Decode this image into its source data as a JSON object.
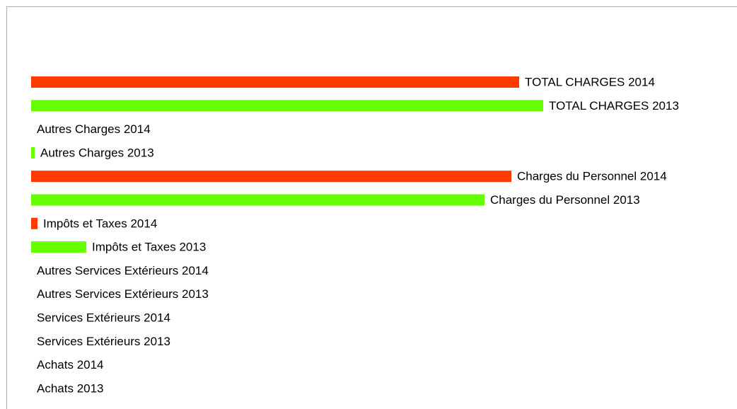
{
  "chart_data": {
    "type": "bar",
    "orientation": "horizontal",
    "categories": [
      "TOTAL CHARGES 2014",
      "TOTAL CHARGES 2013",
      "Autres Charges 2014",
      "Autres Charges 2013",
      "Charges du Personnel 2014",
      "Charges du Personnel 2013",
      "Impôts et Taxes 2014",
      "Impôts et Taxes 2013",
      "Autres Services Extérieurs 2014",
      "Autres Services Extérieurs 2013",
      "Services Extérieurs 2014",
      "Services Extérieurs 2013",
      "Achats 2014",
      "Achats 2013"
    ],
    "values": [
      690,
      724,
      0,
      5,
      679,
      641,
      9,
      78,
      0,
      0,
      0,
      0,
      0,
      0
    ],
    "colors": [
      "#ff3a00",
      "#66ff00",
      "#ff3a00",
      "#66ff00",
      "#ff3a00",
      "#66ff00",
      "#ff3a00",
      "#66ff00",
      "#ff3a00",
      "#66ff00",
      "#ff3a00",
      "#66ff00",
      "#ff3a00",
      "#66ff00"
    ]
  }
}
